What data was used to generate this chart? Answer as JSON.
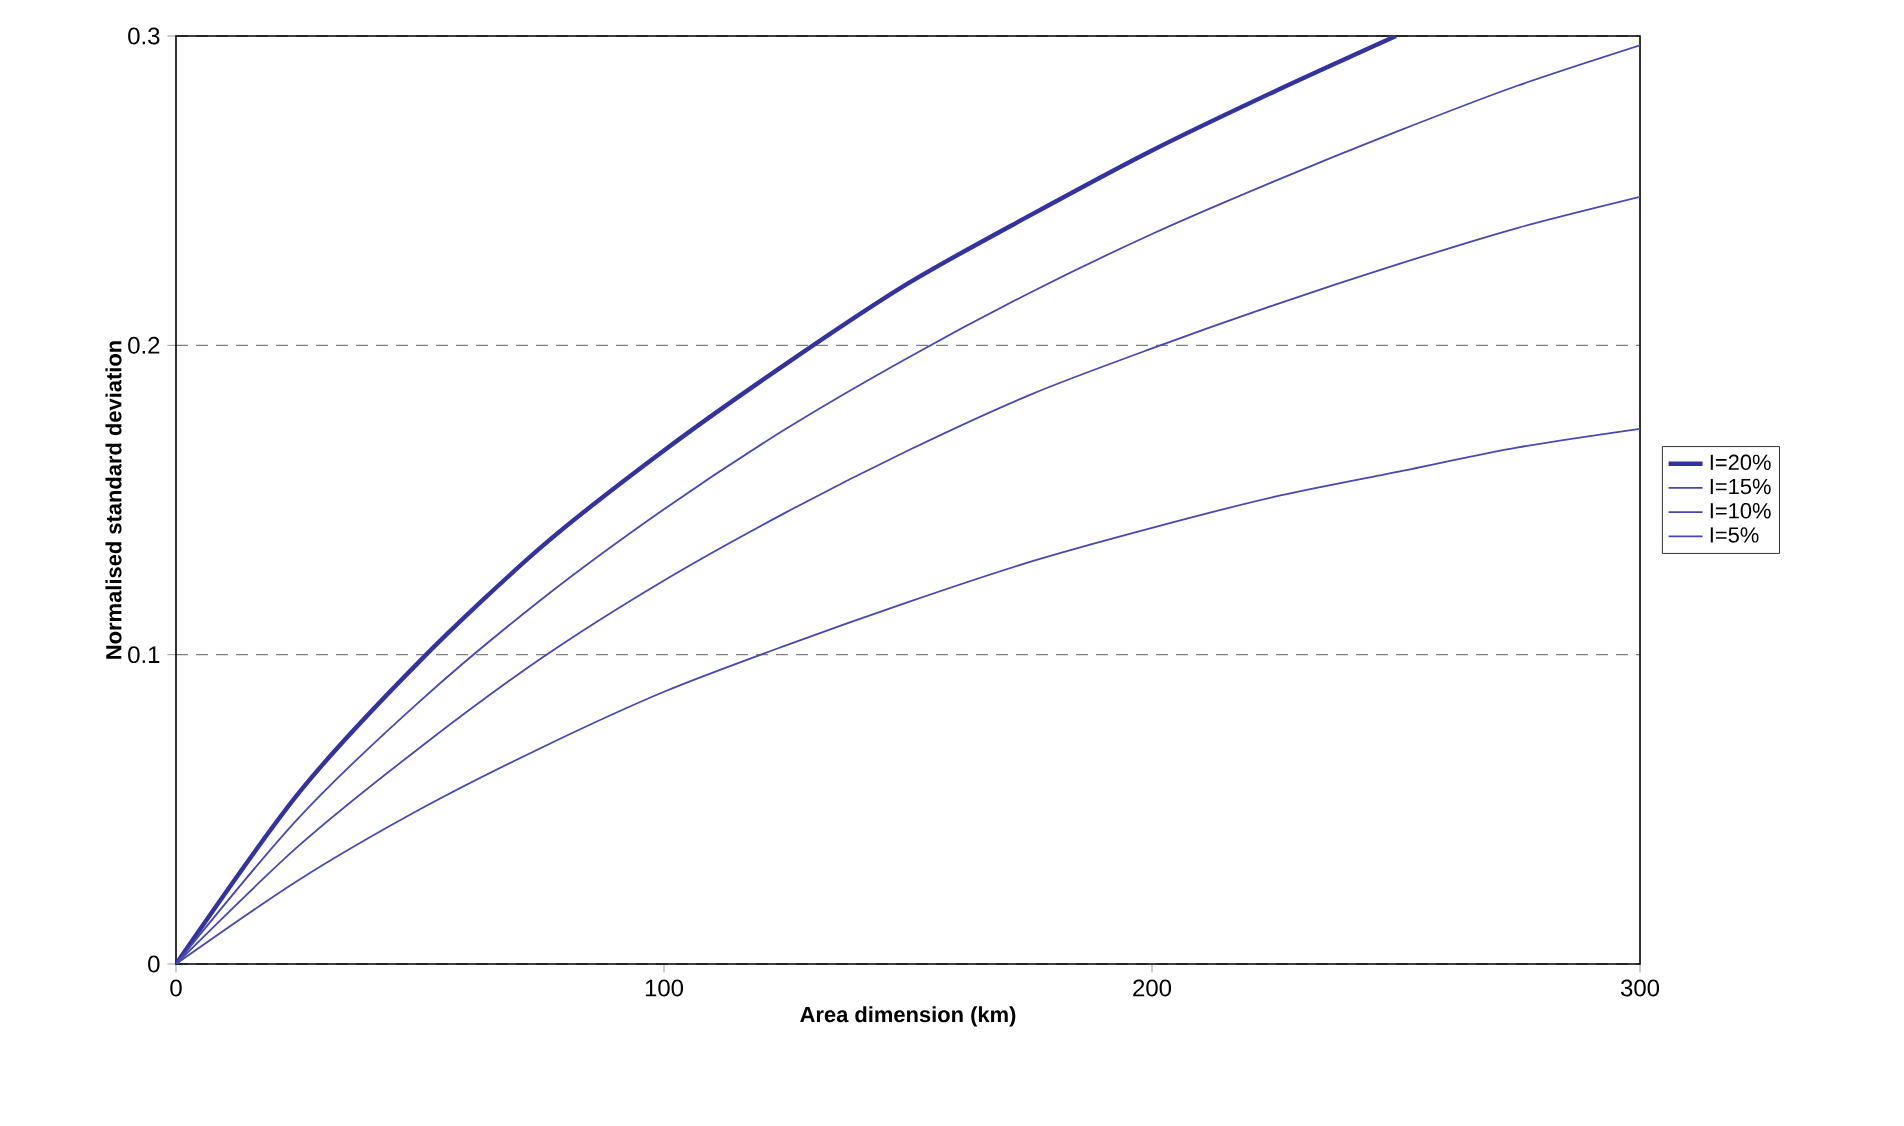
{
  "chart_data": {
    "type": "line",
    "xlabel": "Area dimension (km)",
    "ylabel": "Normalised standard deviation",
    "xlim": [
      0,
      300
    ],
    "ylim": [
      0,
      0.3
    ],
    "xticks": [
      0,
      100,
      200,
      300
    ],
    "yticks": [
      0,
      0.1,
      0.2,
      0.3
    ],
    "grid": "y",
    "legend": "right",
    "marker": "none",
    "line_style": "solid",
    "series": [
      {
        "name": "I=20%",
        "color": "#3333a0",
        "x": [
          0,
          25,
          50,
          75,
          100,
          125,
          150,
          175,
          200,
          225,
          250
        ],
        "values": [
          0,
          0.055,
          0.098,
          0.135,
          0.166,
          0.194,
          0.22,
          0.242,
          0.263,
          0.282,
          0.3
        ]
      },
      {
        "name": "I=15%",
        "color": "#4848b0",
        "x": [
          0,
          25,
          50,
          75,
          100,
          125,
          150,
          175,
          200,
          225,
          250,
          275,
          300
        ],
        "values": [
          0,
          0.047,
          0.085,
          0.118,
          0.147,
          0.173,
          0.196,
          0.217,
          0.236,
          0.253,
          0.269,
          0.284,
          0.297
        ]
      },
      {
        "name": "I=10%",
        "color": "#4848b0",
        "x": [
          0,
          25,
          50,
          75,
          100,
          125,
          150,
          175,
          200,
          225,
          250,
          275,
          300
        ],
        "values": [
          0,
          0.038,
          0.07,
          0.099,
          0.124,
          0.146,
          0.166,
          0.184,
          0.199,
          0.213,
          0.226,
          0.238,
          0.248
        ]
      },
      {
        "name": "I=5%",
        "color": "#4848b0",
        "x": [
          0,
          25,
          50,
          75,
          100,
          125,
          150,
          175,
          200,
          225,
          250,
          275,
          300
        ],
        "values": [
          0,
          0.027,
          0.05,
          0.07,
          0.088,
          0.103,
          0.117,
          0.13,
          0.141,
          0.151,
          0.159,
          0.167,
          0.173
        ]
      }
    ]
  }
}
